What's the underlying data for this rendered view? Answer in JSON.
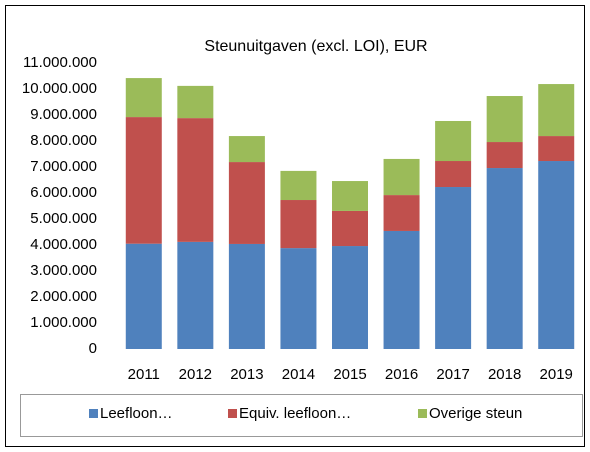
{
  "chart_data": {
    "type": "stacked-bar",
    "title": "Steunuitgaven (excl. LOI), EUR",
    "categories": [
      "2011",
      "2012",
      "2013",
      "2014",
      "2015",
      "2016",
      "2017",
      "2018",
      "2019"
    ],
    "series": [
      {
        "name": "Leefloon…",
        "color": "#4f81bd",
        "values": [
          4050000,
          4120000,
          4040000,
          3880000,
          3960000,
          4540000,
          6230000,
          6960000,
          7230000
        ]
      },
      {
        "name": "Equiv. leefloon…",
        "color": "#c0504d",
        "values": [
          4870000,
          4760000,
          3150000,
          1850000,
          1350000,
          1380000,
          1000000,
          1000000,
          960000
        ]
      },
      {
        "name": "Overige steun",
        "color": "#9bbb59",
        "values": [
          1500000,
          1240000,
          1000000,
          1120000,
          1150000,
          1390000,
          1540000,
          1770000,
          2000000
        ]
      }
    ],
    "ylim": [
      0,
      11000000
    ],
    "yticks": [
      0,
      {
        "value": 1000000,
        "label": "1.000.000"
      },
      {
        "value": 2000000,
        "label": "2.000.000"
      },
      {
        "value": 3000000,
        "label": "3.000.000"
      },
      {
        "value": 4000000,
        "label": "4.000.000"
      },
      {
        "value": 5000000,
        "label": "5.000.000"
      },
      {
        "value": 6000000,
        "label": "6.000.000"
      },
      {
        "value": 7000000,
        "label": "7.000.000"
      },
      {
        "value": 8000000,
        "label": "8.000.000"
      },
      {
        "value": 9000000,
        "label": "9.000.000"
      },
      {
        "value": 10000000,
        "label": "10.000.000"
      },
      {
        "value": 11000000,
        "label": "11.000.000"
      }
    ],
    "legend": "bottom"
  }
}
